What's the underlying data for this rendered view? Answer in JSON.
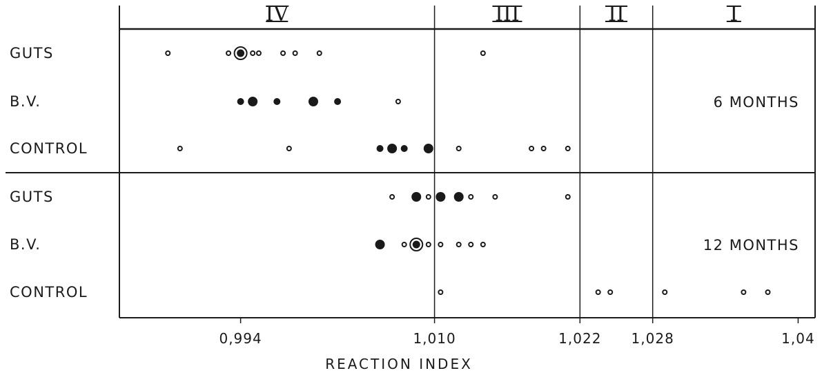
{
  "chart_data": {
    "type": "scatter",
    "title": "",
    "xlabel": "REACTION INDEX",
    "ylabel": "",
    "xlim": [
      0.984,
      1.0414
    ],
    "x_ticks": [
      {
        "value": 0.994,
        "label": "0,994"
      },
      {
        "value": 1.01,
        "label": "1,010"
      },
      {
        "value": 1.022,
        "label": "1,022"
      },
      {
        "value": 1.028,
        "label": "1,028"
      },
      {
        "value": 1.04,
        "label": "1,04"
      }
    ],
    "zones": [
      {
        "label": "IV",
        "from": 0.984,
        "to": 1.01
      },
      {
        "label": "III",
        "from": 1.01,
        "to": 1.022
      },
      {
        "label": "II",
        "from": 1.022,
        "to": 1.028
      },
      {
        "label": "I",
        "from": 1.028,
        "to": 1.0414
      }
    ],
    "panels": [
      {
        "period": "6 MONTHS",
        "rows": [
          {
            "label": "GUTS",
            "points": [
              {
                "x": 0.988,
                "size": "s"
              },
              {
                "x": 0.993,
                "size": "s"
              },
              {
                "x": 0.994,
                "size": "ring"
              },
              {
                "x": 0.995,
                "size": "s"
              },
              {
                "x": 0.9955,
                "size": "s"
              },
              {
                "x": 0.9975,
                "size": "s"
              },
              {
                "x": 0.9985,
                "size": "s"
              },
              {
                "x": 1.0005,
                "size": "s"
              },
              {
                "x": 1.014,
                "size": "s"
              }
            ]
          },
          {
            "label": "B.V.",
            "points": [
              {
                "x": 0.994,
                "size": "m"
              },
              {
                "x": 0.995,
                "size": "l"
              },
              {
                "x": 0.997,
                "size": "m"
              },
              {
                "x": 1.0,
                "size": "l"
              },
              {
                "x": 1.002,
                "size": "m"
              },
              {
                "x": 1.007,
                "size": "s"
              }
            ]
          },
          {
            "label": "CONTROL",
            "points": [
              {
                "x": 0.989,
                "size": "s"
              },
              {
                "x": 0.998,
                "size": "s"
              },
              {
                "x": 1.0055,
                "size": "m"
              },
              {
                "x": 1.0065,
                "size": "l"
              },
              {
                "x": 1.0075,
                "size": "m"
              },
              {
                "x": 1.0095,
                "size": "l"
              },
              {
                "x": 1.012,
                "size": "s"
              },
              {
                "x": 1.018,
                "size": "s"
              },
              {
                "x": 1.019,
                "size": "s"
              },
              {
                "x": 1.021,
                "size": "s"
              }
            ]
          }
        ]
      },
      {
        "period": "12 MONTHS",
        "rows": [
          {
            "label": "GUTS",
            "points": [
              {
                "x": 1.0065,
                "size": "s"
              },
              {
                "x": 1.0085,
                "size": "l"
              },
              {
                "x": 1.0095,
                "size": "s"
              },
              {
                "x": 1.0105,
                "size": "l"
              },
              {
                "x": 1.012,
                "size": "l"
              },
              {
                "x": 1.013,
                "size": "s"
              },
              {
                "x": 1.015,
                "size": "s"
              },
              {
                "x": 1.021,
                "size": "s"
              }
            ]
          },
          {
            "label": "B.V.",
            "points": [
              {
                "x": 1.0055,
                "size": "l"
              },
              {
                "x": 1.0075,
                "size": "s"
              },
              {
                "x": 1.0085,
                "size": "ring"
              },
              {
                "x": 1.0095,
                "size": "s"
              },
              {
                "x": 1.0105,
                "size": "s"
              },
              {
                "x": 1.012,
                "size": "s"
              },
              {
                "x": 1.013,
                "size": "s"
              },
              {
                "x": 1.014,
                "size": "s"
              }
            ]
          },
          {
            "label": "CONTROL",
            "points": [
              {
                "x": 1.0105,
                "size": "s"
              },
              {
                "x": 1.0235,
                "size": "s"
              },
              {
                "x": 1.0245,
                "size": "s"
              },
              {
                "x": 1.029,
                "size": "s"
              },
              {
                "x": 1.0355,
                "size": "s"
              },
              {
                "x": 1.0375,
                "size": "s"
              }
            ]
          }
        ]
      }
    ]
  }
}
